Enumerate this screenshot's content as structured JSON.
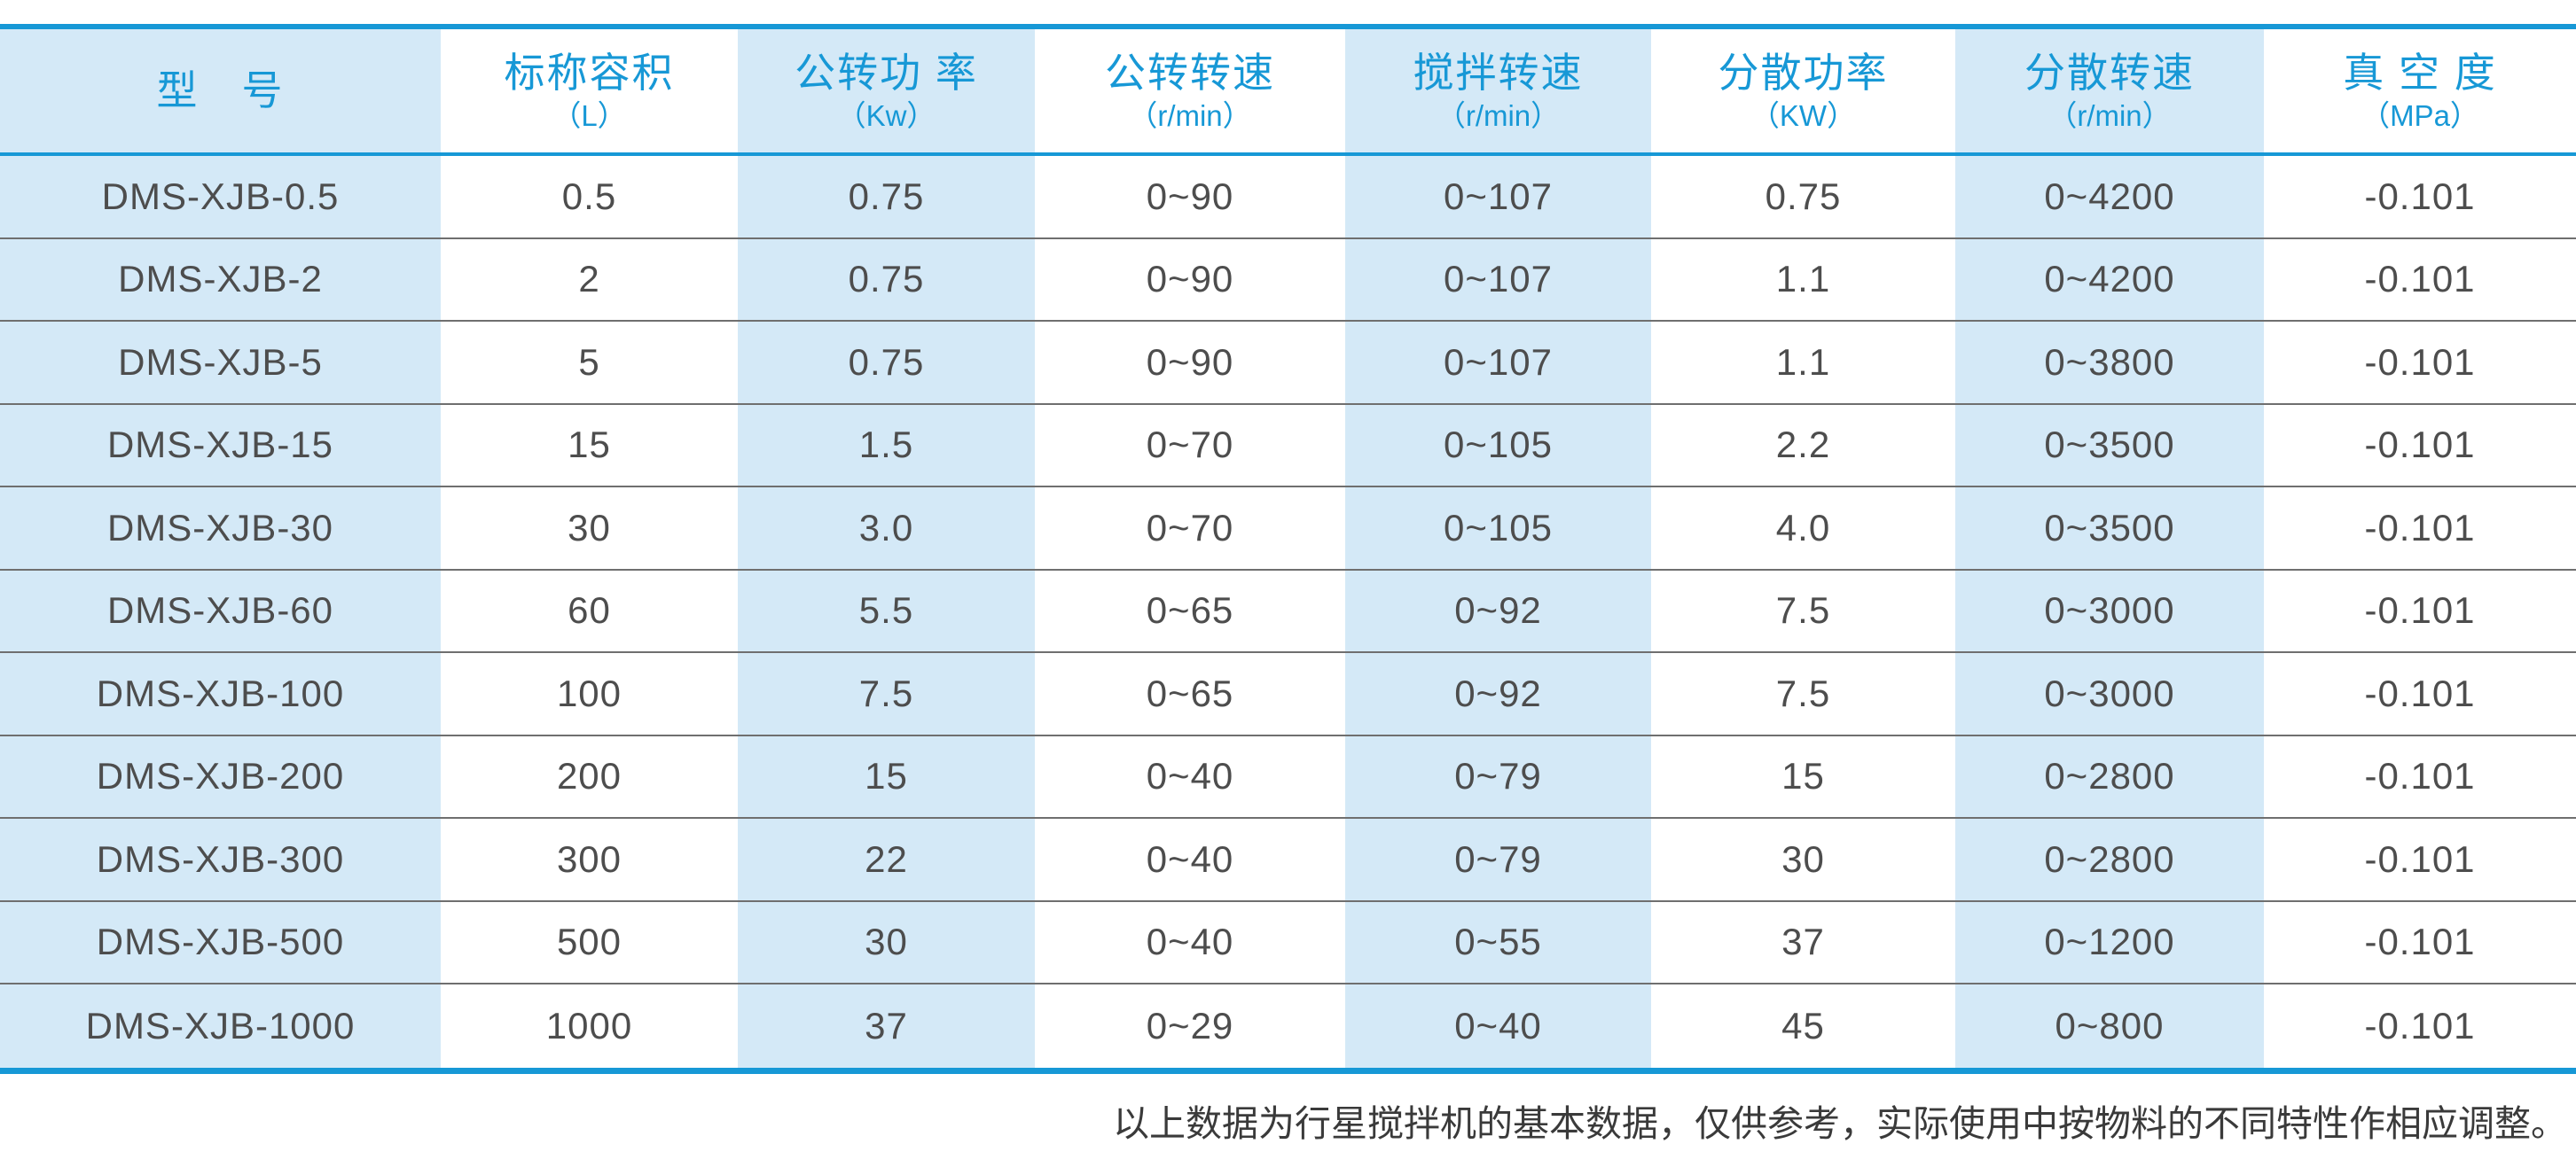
{
  "table": {
    "columns": [
      {
        "title": "型　号",
        "unit": ""
      },
      {
        "title": "标称容积",
        "unit": "（L）"
      },
      {
        "title": "公转功 率",
        "unit": "（Kw）"
      },
      {
        "title": "公转转速",
        "unit": "（r/min）"
      },
      {
        "title": "搅拌转速",
        "unit": "（r/min）"
      },
      {
        "title": "分散功率",
        "unit": "（KW）"
      },
      {
        "title": "分散转速",
        "unit": "（r/min）"
      },
      {
        "title": "真 空 度",
        "unit": "（MPa）"
      }
    ],
    "rows": [
      [
        "DMS-XJB-0.5",
        "0.5",
        "0.75",
        "0~90",
        "0~107",
        "0.75",
        "0~4200",
        "-0.101"
      ],
      [
        "DMS-XJB-2",
        "2",
        "0.75",
        "0~90",
        "0~107",
        "1.1",
        "0~4200",
        "-0.101"
      ],
      [
        "DMS-XJB-5",
        "5",
        "0.75",
        "0~90",
        "0~107",
        "1.1",
        "0~3800",
        "-0.101"
      ],
      [
        "DMS-XJB-15",
        "15",
        "1.5",
        "0~70",
        "0~105",
        "2.2",
        "0~3500",
        "-0.101"
      ],
      [
        "DMS-XJB-30",
        "30",
        "3.0",
        "0~70",
        "0~105",
        "4.0",
        "0~3500",
        "-0.101"
      ],
      [
        "DMS-XJB-60",
        "60",
        "5.5",
        "0~65",
        "0~92",
        "7.5",
        "0~3000",
        "-0.101"
      ],
      [
        "DMS-XJB-100",
        "100",
        "7.5",
        "0~65",
        "0~92",
        "7.5",
        "0~3000",
        "-0.101"
      ],
      [
        "DMS-XJB-200",
        "200",
        "15",
        "0~40",
        "0~79",
        "15",
        "0~2800",
        "-0.101"
      ],
      [
        "DMS-XJB-300",
        "300",
        "22",
        "0~40",
        "0~79",
        "30",
        "0~2800",
        "-0.101"
      ],
      [
        "DMS-XJB-500",
        "500",
        "30",
        "0~40",
        "0~55",
        "37",
        "0~1200",
        "-0.101"
      ],
      [
        "DMS-XJB-1000",
        "1000",
        "37",
        "0~29",
        "0~40",
        "45",
        "0~800",
        "-0.101"
      ]
    ]
  },
  "footer": {
    "note": "以上数据为行星搅拌机的基本数据，仅供参考，实际使用中按物料的不同特性作相应调整。"
  },
  "colors": {
    "accent_blue": "#1798D6",
    "stripe_light_blue": "#D4E9F7",
    "row_separator_gray": "#6F6F6F",
    "body_text_gray": "#4D4D4D",
    "footer_text_gray": "#3A3A3A"
  }
}
